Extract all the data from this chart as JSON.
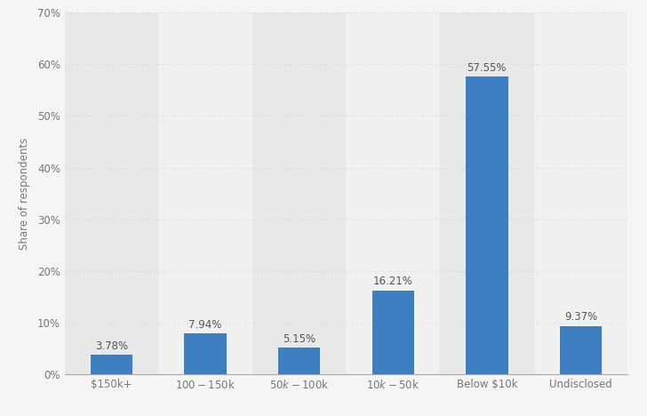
{
  "categories": [
    "$150k+",
    "$100-$150k",
    "$50k-$100k",
    "$10k-$50k",
    "Below $10k",
    "Undisclosed"
  ],
  "values": [
    3.78,
    7.94,
    5.15,
    16.21,
    57.55,
    9.37
  ],
  "labels": [
    "3.78%",
    "7.94%",
    "5.15%",
    "16.21%",
    "57.55%",
    "9.37%"
  ],
  "bar_color": "#3d7fc1",
  "background_color": "#f5f5f5",
  "column_bg_light": "#f0f0f0",
  "column_bg_dark": "#e8e8e8",
  "grid_color": "#cccccc",
  "ylabel": "Share of respondents",
  "ylim": [
    0,
    70
  ],
  "yticks": [
    0,
    10,
    20,
    30,
    40,
    50,
    60,
    70
  ],
  "label_fontsize": 8.5,
  "tick_fontsize": 8.5,
  "ylabel_fontsize": 8.5,
  "bar_width": 0.45
}
